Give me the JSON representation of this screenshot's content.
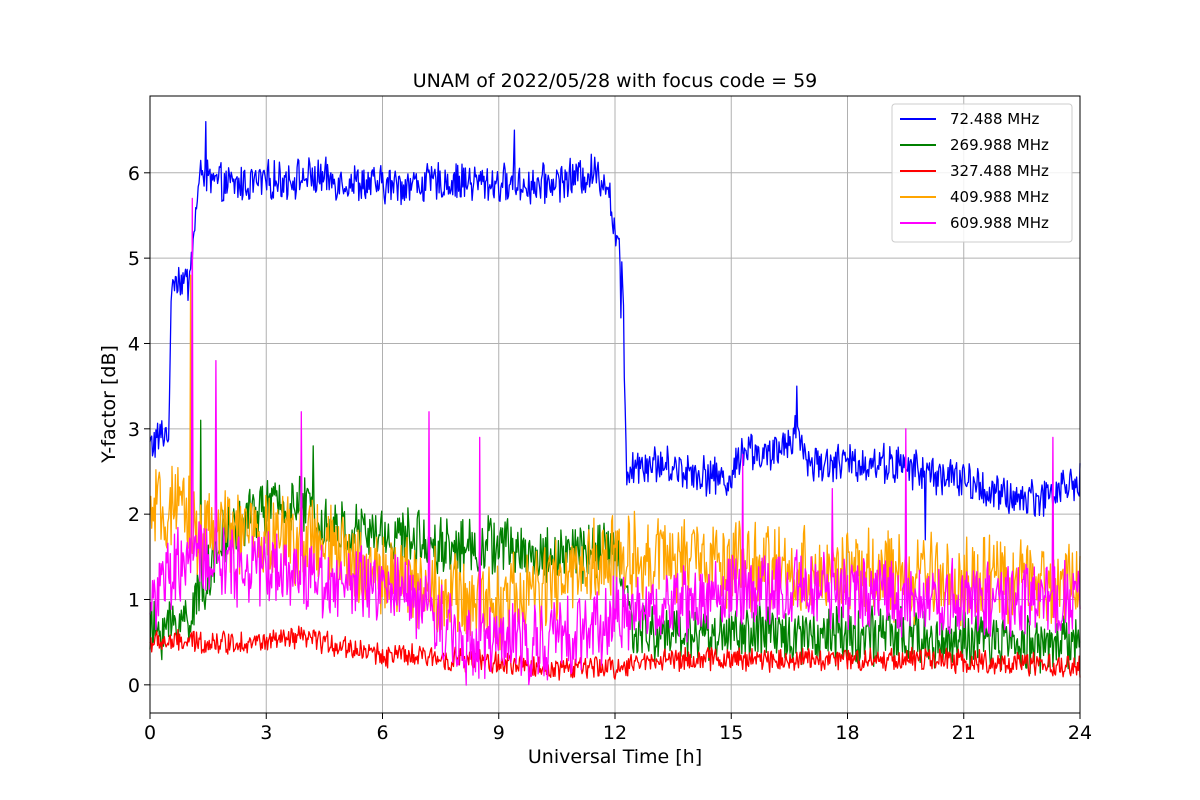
{
  "chart_data": {
    "type": "line",
    "title": "UNAM of 2022/05/28 with focus code = 59",
    "xlabel": "Universal Time [h]",
    "ylabel": "Y-factor [dB]",
    "xlim": [
      0,
      24
    ],
    "ylim": [
      -0.33,
      6.9
    ],
    "xticks": [
      0,
      3,
      6,
      9,
      12,
      15,
      18,
      21,
      24
    ],
    "yticks": [
      0,
      1,
      2,
      3,
      4,
      5,
      6
    ],
    "grid": true,
    "legend_position": "top-right",
    "series": [
      {
        "name": " 72.488 MHz",
        "color": "#0000ff",
        "noise": 0.2,
        "x": [
          0.0,
          0.5,
          0.55,
          0.6,
          1.0,
          1.2,
          1.35,
          1.5,
          2.0,
          4.0,
          6.0,
          8.0,
          10.0,
          11.5,
          11.8,
          12.0,
          12.2,
          12.3,
          12.5,
          13.0,
          14.0,
          15.0,
          15.3,
          16.0,
          16.7,
          17.0,
          18.0,
          19.0,
          20.0,
          21.0,
          22.0,
          23.0,
          24.0
        ],
        "y": [
          2.8,
          3.0,
          4.7,
          4.8,
          4.7,
          5.6,
          6.1,
          5.9,
          5.85,
          5.95,
          5.85,
          5.9,
          5.85,
          6.0,
          5.9,
          5.3,
          4.8,
          2.5,
          2.6,
          2.6,
          2.5,
          2.4,
          2.8,
          2.65,
          3.0,
          2.6,
          2.6,
          2.6,
          2.5,
          2.4,
          2.2,
          2.2,
          2.4
        ],
        "spikes": [
          [
            1.45,
            6.6
          ],
          [
            9.4,
            6.5
          ],
          [
            12.15,
            4.3
          ],
          [
            12.25,
            3.6
          ],
          [
            16.7,
            3.5
          ],
          [
            20.0,
            1.7
          ]
        ]
      },
      {
        "name": "269.988 MHz",
        "color": "#008000",
        "noise": 0.3,
        "x": [
          0.0,
          0.5,
          1.0,
          2.0,
          3.0,
          4.0,
          4.5,
          5.0,
          6.0,
          7.0,
          8.0,
          9.0,
          10.0,
          11.0,
          12.0,
          12.5,
          13.0,
          15.0,
          18.0,
          21.0,
          24.0
        ],
        "y": [
          0.6,
          0.7,
          0.8,
          1.8,
          2.1,
          2.1,
          1.9,
          1.8,
          1.75,
          1.7,
          1.6,
          1.65,
          1.5,
          1.55,
          1.6,
          0.6,
          0.6,
          0.6,
          0.6,
          0.5,
          0.5
        ],
        "spikes": [
          [
            1.3,
            3.1
          ],
          [
            4.2,
            2.8
          ]
        ]
      },
      {
        "name": "327.488 MHz",
        "color": "#ff0000",
        "noise": 0.12,
        "x": [
          0.0,
          3.0,
          4.0,
          5.0,
          6.0,
          8.0,
          10.0,
          12.0,
          13.0,
          16.0,
          20.0,
          24.0
        ],
        "y": [
          0.5,
          0.5,
          0.55,
          0.45,
          0.35,
          0.3,
          0.2,
          0.2,
          0.3,
          0.3,
          0.3,
          0.2
        ],
        "spikes": []
      },
      {
        "name": "409.988 MHz",
        "color": "#ffa500",
        "noise": 0.45,
        "x": [
          0.0,
          1.0,
          1.2,
          2.0,
          4.0,
          5.0,
          6.0,
          7.0,
          8.0,
          9.0,
          10.0,
          11.0,
          12.0,
          13.0,
          15.0,
          18.0,
          21.0,
          24.0
        ],
        "y": [
          2.0,
          2.0,
          1.8,
          1.8,
          1.7,
          1.5,
          1.3,
          1.2,
          1.0,
          0.95,
          1.1,
          1.3,
          1.5,
          1.5,
          1.4,
          1.3,
          1.2,
          1.2
        ],
        "spikes": [
          [
            1.05,
            4.8
          ]
        ]
      },
      {
        "name": "609.988 MHz",
        "color": "#ff00ff",
        "noise": 0.4,
        "x": [
          0.0,
          1.0,
          2.0,
          3.0,
          4.0,
          5.0,
          7.0,
          8.0,
          9.0,
          10.0,
          11.0,
          12.0,
          13.0,
          15.0,
          18.0,
          21.0,
          24.0
        ],
        "y": [
          1.0,
          1.5,
          1.4,
          1.4,
          1.3,
          1.2,
          1.0,
          0.5,
          0.5,
          0.5,
          0.6,
          0.8,
          0.9,
          1.1,
          1.1,
          1.0,
          1.0
        ],
        "spikes": [
          [
            1.1,
            5.7
          ],
          [
            1.7,
            3.8
          ],
          [
            3.9,
            3.2
          ],
          [
            7.2,
            3.2
          ],
          [
            8.5,
            2.9
          ],
          [
            15.3,
            2.7
          ],
          [
            17.6,
            2.3
          ],
          [
            19.5,
            3.0
          ],
          [
            23.3,
            2.9
          ]
        ]
      }
    ]
  }
}
